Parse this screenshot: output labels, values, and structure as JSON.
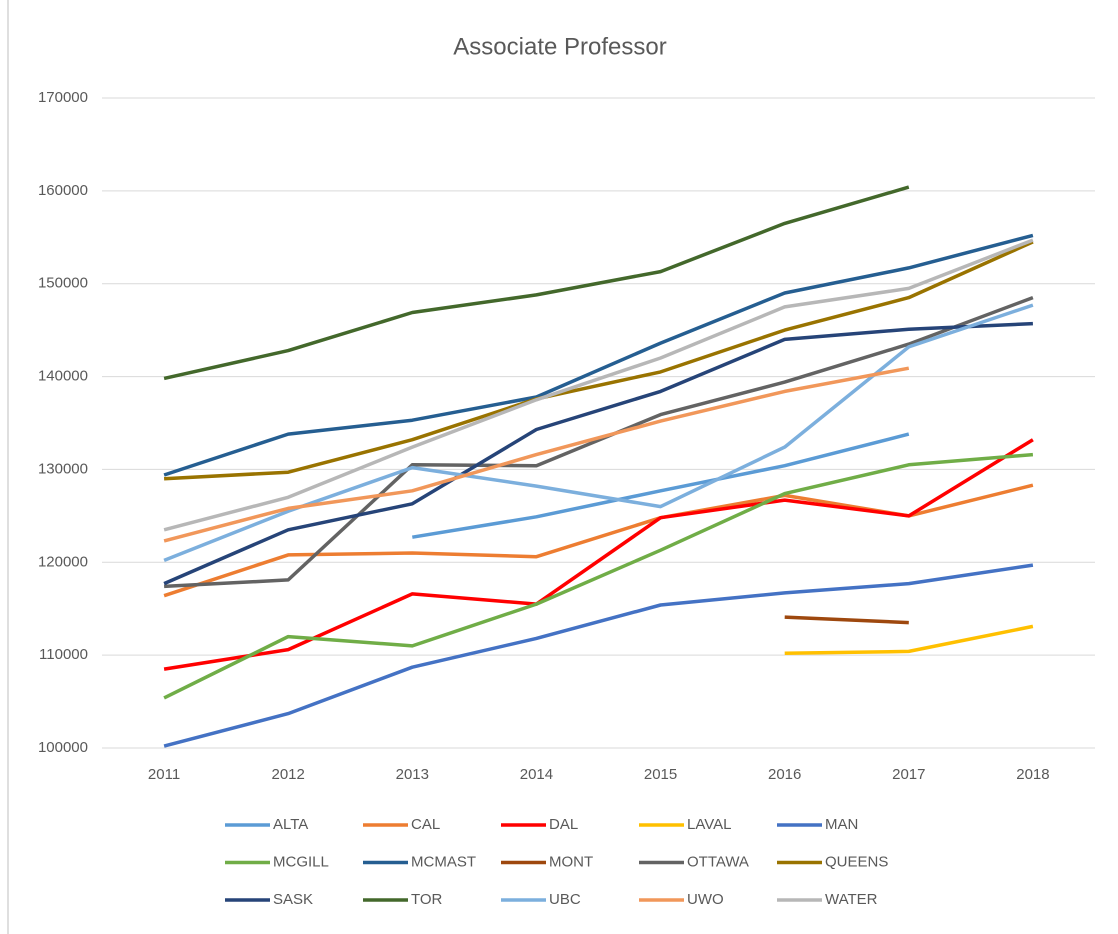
{
  "chart_data": {
    "type": "line",
    "title": "Associate Professor",
    "categories": [
      "2011",
      "2012",
      "2013",
      "2014",
      "2015",
      "2016",
      "2017",
      "2018"
    ],
    "ylim": [
      100000,
      170000
    ],
    "yticks": [
      100000,
      110000,
      120000,
      130000,
      140000,
      150000,
      160000,
      170000
    ],
    "grid": true,
    "legend": "bottom",
    "series": [
      {
        "name": "ALTA",
        "color": "#5b9bd5",
        "values": [
          null,
          null,
          122700,
          124900,
          127700,
          130400,
          133800,
          null
        ]
      },
      {
        "name": "CAL",
        "color": "#ed7d31",
        "values": [
          116400,
          120800,
          121000,
          120600,
          124800,
          127200,
          125000,
          128300
        ]
      },
      {
        "name": "DAL",
        "color": "#ff0000",
        "values": [
          108500,
          110600,
          116600,
          115500,
          124800,
          126700,
          125000,
          133200
        ]
      },
      {
        "name": "LAVAL",
        "color": "#ffc000",
        "values": [
          null,
          null,
          null,
          null,
          null,
          110200,
          110400,
          113100
        ]
      },
      {
        "name": "MAN",
        "color": "#4472c4",
        "values": [
          100200,
          103700,
          108700,
          111800,
          115400,
          116700,
          117700,
          119700
        ]
      },
      {
        "name": "MCGILL",
        "color": "#70ad47",
        "values": [
          105400,
          112000,
          111000,
          115500,
          121300,
          127400,
          130500,
          131600
        ]
      },
      {
        "name": "MCMAST",
        "color": "#255e91",
        "values": [
          129400,
          133800,
          135300,
          137800,
          143600,
          149000,
          151700,
          155200
        ]
      },
      {
        "name": "MONT",
        "color": "#9e480e",
        "values": [
          null,
          null,
          null,
          null,
          null,
          114100,
          113500,
          null
        ]
      },
      {
        "name": "OTTAWA",
        "color": "#636363",
        "values": [
          117400,
          118100,
          130500,
          130400,
          135900,
          139400,
          143500,
          148500
        ]
      },
      {
        "name": "QUEENS",
        "color": "#997300",
        "values": [
          129000,
          129700,
          133200,
          137600,
          140500,
          145000,
          148500,
          154500
        ]
      },
      {
        "name": "SASK",
        "color": "#264478",
        "values": [
          117700,
          123500,
          126300,
          134300,
          138400,
          144000,
          145100,
          145700
        ]
      },
      {
        "name": "TOR",
        "color": "#43682b",
        "values": [
          139800,
          142800,
          146900,
          148800,
          151300,
          156500,
          160400,
          null
        ]
      },
      {
        "name": "UBC",
        "color": "#7cafdd",
        "values": [
          120200,
          125500,
          130200,
          128200,
          126000,
          132400,
          143200,
          147700
        ]
      },
      {
        "name": "UWO",
        "color": "#f1975a",
        "values": [
          122300,
          125800,
          127700,
          131600,
          135200,
          138400,
          140900,
          null
        ]
      },
      {
        "name": "WATER",
        "color": "#b7b7b7",
        "values": [
          123500,
          127000,
          132400,
          137500,
          142000,
          147500,
          149500,
          154700
        ]
      }
    ]
  }
}
